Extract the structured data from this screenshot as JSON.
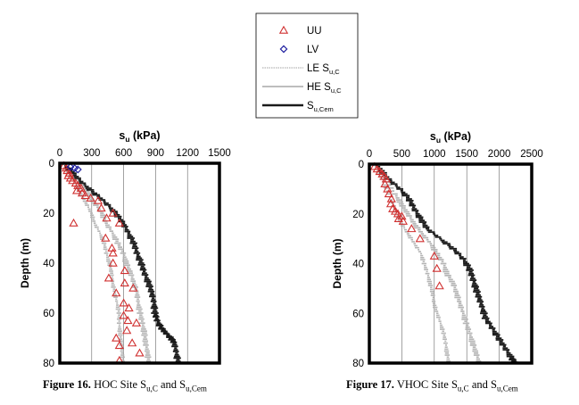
{
  "legend": {
    "items": [
      {
        "label": "UU",
        "kind": "triangle",
        "color": "#d03030"
      },
      {
        "label": "LV",
        "kind": "diamond",
        "color": "#2020a0"
      },
      {
        "label": "LE S",
        "sub": "u,C",
        "kind": "dotted-line",
        "color": "#b4b4b4"
      },
      {
        "label": "HE S",
        "sub": "u,C",
        "kind": "line",
        "color": "#b4b4b4"
      },
      {
        "label": "S",
        "sub": "u,Cem",
        "kind": "line",
        "color": "#1a1a1a"
      }
    ]
  },
  "captions": [
    {
      "prefix": "Figure 16.",
      "text": "HOC Site S",
      "sub1": "u,C",
      "mid": " and S",
      "sub2": "u,Cem"
    },
    {
      "prefix": "Figure 17.",
      "text": "VHOC Site S",
      "sub1": "u,C",
      "mid": " and S",
      "sub2": "u,Cem"
    }
  ],
  "chart_data": [
    {
      "type": "scatter",
      "title": "HOC Site",
      "xlabel": "s",
      "xlabel_sub": "u",
      "xlabel_unit": " (kPa)",
      "ylabel": "Depth (m)",
      "xlim": [
        0,
        1500
      ],
      "ylim": [
        0,
        80
      ],
      "xticks": [
        0,
        300,
        600,
        900,
        1200,
        1500
      ],
      "yticks": [
        0,
        20,
        40,
        60,
        80
      ],
      "colors": {
        "uu": "#d03030",
        "lv": "#2020a0",
        "le": "#b4b4b4",
        "he": "#b4b4b4",
        "cem": "#1a1a1a"
      },
      "series": [
        {
          "name": "UU",
          "points": [
            [
              40,
              1
            ],
            [
              60,
              2
            ],
            [
              70,
              3
            ],
            [
              90,
              4
            ],
            [
              80,
              5
            ],
            [
              100,
              6
            ],
            [
              120,
              7
            ],
            [
              150,
              8
            ],
            [
              170,
              9
            ],
            [
              200,
              10
            ],
            [
              160,
              11
            ],
            [
              210,
              12
            ],
            [
              240,
              13
            ],
            [
              290,
              14
            ],
            [
              360,
              15
            ],
            [
              390,
              18
            ],
            [
              440,
              22
            ],
            [
              500,
              20
            ],
            [
              560,
              24
            ],
            [
              130,
              24
            ],
            [
              430,
              30
            ],
            [
              490,
              34
            ],
            [
              500,
              36
            ],
            [
              500,
              40
            ],
            [
              610,
              43
            ],
            [
              460,
              46
            ],
            [
              610,
              48
            ],
            [
              690,
              50
            ],
            [
              530,
              52
            ],
            [
              600,
              56
            ],
            [
              650,
              58
            ],
            [
              600,
              61
            ],
            [
              640,
              63
            ],
            [
              720,
              64
            ],
            [
              630,
              67
            ],
            [
              530,
              70
            ],
            [
              680,
              72
            ],
            [
              560,
              73
            ],
            [
              750,
              76
            ],
            [
              560,
              79
            ]
          ]
        },
        {
          "name": "LV",
          "points": [
            [
              100,
              1.5
            ],
            [
              140,
              2
            ],
            [
              170,
              2.5
            ]
          ]
        },
        {
          "name": "LE S_u,C",
          "points": [
            [
              50,
              1
            ],
            [
              80,
              4
            ],
            [
              150,
              8
            ],
            [
              200,
              12
            ],
            [
              250,
              16
            ],
            [
              300,
              20
            ],
            [
              330,
              24
            ],
            [
              380,
              28
            ],
            [
              420,
              32
            ],
            [
              440,
              36
            ],
            [
              470,
              40
            ],
            [
              490,
              44
            ],
            [
              500,
              48
            ],
            [
              520,
              52
            ],
            [
              540,
              56
            ],
            [
              560,
              60
            ],
            [
              560,
              64
            ],
            [
              570,
              68
            ],
            [
              580,
              72
            ],
            [
              590,
              76
            ],
            [
              600,
              80
            ]
          ]
        },
        {
          "name": "HE S_u,C",
          "points": [
            [
              60,
              1
            ],
            [
              110,
              4
            ],
            [
              200,
              8
            ],
            [
              270,
              12
            ],
            [
              330,
              16
            ],
            [
              400,
              20
            ],
            [
              440,
              24
            ],
            [
              500,
              28
            ],
            [
              550,
              32
            ],
            [
              600,
              36
            ],
            [
              630,
              40
            ],
            [
              670,
              44
            ],
            [
              700,
              48
            ],
            [
              730,
              52
            ],
            [
              740,
              56
            ],
            [
              760,
              60
            ],
            [
              780,
              64
            ],
            [
              800,
              68
            ],
            [
              810,
              72
            ],
            [
              830,
              76
            ],
            [
              840,
              80
            ]
          ]
        },
        {
          "name": "S_u,Cem",
          "points": [
            [
              60,
              1
            ],
            [
              130,
              4
            ],
            [
              220,
              8
            ],
            [
              330,
              12
            ],
            [
              440,
              16
            ],
            [
              530,
              20
            ],
            [
              600,
              24
            ],
            [
              650,
              28
            ],
            [
              700,
              32
            ],
            [
              730,
              36
            ],
            [
              770,
              40
            ],
            [
              800,
              44
            ],
            [
              840,
              48
            ],
            [
              870,
              52
            ],
            [
              890,
              56
            ],
            [
              900,
              60
            ],
            [
              920,
              63
            ],
            [
              960,
              66
            ],
            [
              1000,
              68
            ],
            [
              1050,
              70
            ],
            [
              1080,
              72
            ],
            [
              1100,
              76
            ],
            [
              1120,
              80
            ]
          ]
        }
      ]
    },
    {
      "type": "scatter",
      "title": "VHOC Site",
      "xlabel": "s",
      "xlabel_sub": "u",
      "xlabel_unit": " (kPa)",
      "ylabel": "Depth (m)",
      "xlim": [
        0,
        2500
      ],
      "ylim": [
        0,
        80
      ],
      "xticks": [
        0,
        500,
        1000,
        1500,
        2000,
        2500
      ],
      "yticks": [
        0,
        20,
        40,
        60,
        80
      ],
      "colors": {
        "uu": "#d03030",
        "lv": "#2020a0",
        "le": "#b4b4b4",
        "he": "#b4b4b4",
        "cem": "#1a1a1a"
      },
      "series": [
        {
          "name": "UU",
          "points": [
            [
              80,
              1
            ],
            [
              120,
              2
            ],
            [
              160,
              3
            ],
            [
              200,
              4
            ],
            [
              230,
              5
            ],
            [
              260,
              6
            ],
            [
              240,
              8
            ],
            [
              280,
              10
            ],
            [
              300,
              12
            ],
            [
              340,
              14
            ],
            [
              330,
              16
            ],
            [
              360,
              18
            ],
            [
              400,
              19
            ],
            [
              440,
              20
            ],
            [
              450,
              22
            ],
            [
              500,
              21
            ],
            [
              520,
              23
            ],
            [
              650,
              26
            ],
            [
              780,
              30
            ],
            [
              1000,
              37
            ],
            [
              1040,
              42
            ],
            [
              1080,
              49
            ]
          ]
        },
        {
          "name": "LV",
          "points": []
        },
        {
          "name": "LE S_u,C",
          "points": [
            [
              100,
              1
            ],
            [
              200,
              6
            ],
            [
              300,
              12
            ],
            [
              400,
              18
            ],
            [
              500,
              24
            ],
            [
              600,
              28
            ],
            [
              700,
              32
            ],
            [
              800,
              36
            ],
            [
              850,
              40
            ],
            [
              900,
              44
            ],
            [
              940,
              48
            ],
            [
              980,
              52
            ],
            [
              1000,
              56
            ],
            [
              1050,
              60
            ],
            [
              1100,
              64
            ],
            [
              1150,
              68
            ],
            [
              1180,
              72
            ],
            [
              1200,
              76
            ],
            [
              1230,
              80
            ]
          ]
        },
        {
          "name": "HE S_u,C",
          "points": [
            [
              120,
              1
            ],
            [
              250,
              6
            ],
            [
              400,
              12
            ],
            [
              500,
              16
            ],
            [
              600,
              20
            ],
            [
              700,
              24
            ],
            [
              820,
              28
            ],
            [
              950,
              32
            ],
            [
              1050,
              36
            ],
            [
              1150,
              40
            ],
            [
              1200,
              44
            ],
            [
              1300,
              48
            ],
            [
              1350,
              52
            ],
            [
              1400,
              56
            ],
            [
              1450,
              60
            ],
            [
              1500,
              64
            ],
            [
              1550,
              68
            ],
            [
              1600,
              72
            ],
            [
              1650,
              76
            ],
            [
              1700,
              80
            ]
          ]
        },
        {
          "name": "S_u,Cem",
          "points": [
            [
              150,
              1
            ],
            [
              300,
              6
            ],
            [
              480,
              10
            ],
            [
              620,
              14
            ],
            [
              700,
              18
            ],
            [
              800,
              22
            ],
            [
              900,
              26
            ],
            [
              1100,
              30
            ],
            [
              1300,
              34
            ],
            [
              1450,
              38
            ],
            [
              1550,
              42
            ],
            [
              1600,
              46
            ],
            [
              1650,
              50
            ],
            [
              1700,
              54
            ],
            [
              1750,
              58
            ],
            [
              1800,
              62
            ],
            [
              1900,
              66
            ],
            [
              2000,
              70
            ],
            [
              2100,
              74
            ],
            [
              2200,
              78
            ],
            [
              2250,
              80
            ]
          ]
        }
      ]
    }
  ]
}
